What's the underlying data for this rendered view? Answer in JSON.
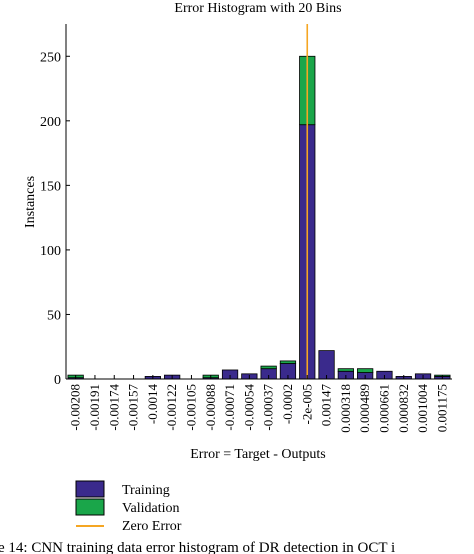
{
  "chart_data": {
    "type": "bar",
    "title": "Error Histogram with 20 Bins",
    "xlabel": "Error = Target - Outputs",
    "ylabel": "Instances",
    "ylim": [
      0,
      275
    ],
    "yticks": [
      0,
      50,
      100,
      150,
      200,
      250
    ],
    "categories": [
      "-0.00208",
      "-0.00191",
      "-0.00174",
      "-0.00157",
      "-0.0014",
      "-0.00122",
      "-0.00105",
      "-0.00088",
      "-0.00071",
      "-0.00054",
      "-0.00037",
      "-0.0002",
      "-2e-005",
      "0.00147",
      "0.000318",
      "0.000489",
      "0.000661",
      "0.000832",
      "0.001004",
      "0.001175"
    ],
    "series": [
      {
        "name": "Training",
        "color": "#3a2a8c",
        "values": [
          1,
          0,
          0,
          0,
          2,
          3,
          0,
          1,
          7,
          4,
          8,
          12,
          197,
          22,
          6,
          5,
          6,
          2,
          4,
          2
        ]
      },
      {
        "name": "Validation",
        "color": "#1aa64a",
        "values": [
          2,
          0,
          0,
          0,
          0,
          0,
          0,
          2,
          0,
          0,
          2,
          2,
          53,
          0,
          2,
          3,
          0,
          0,
          0,
          1
        ]
      }
    ],
    "zero_error": {
      "name": "Zero Error",
      "color": "#f5a623",
      "category": "-2e-005"
    },
    "legend_position": "bottom-left",
    "grid": false
  },
  "caption_fragment": "e 14: CNN training data error histogram of DR detection in OCT i"
}
